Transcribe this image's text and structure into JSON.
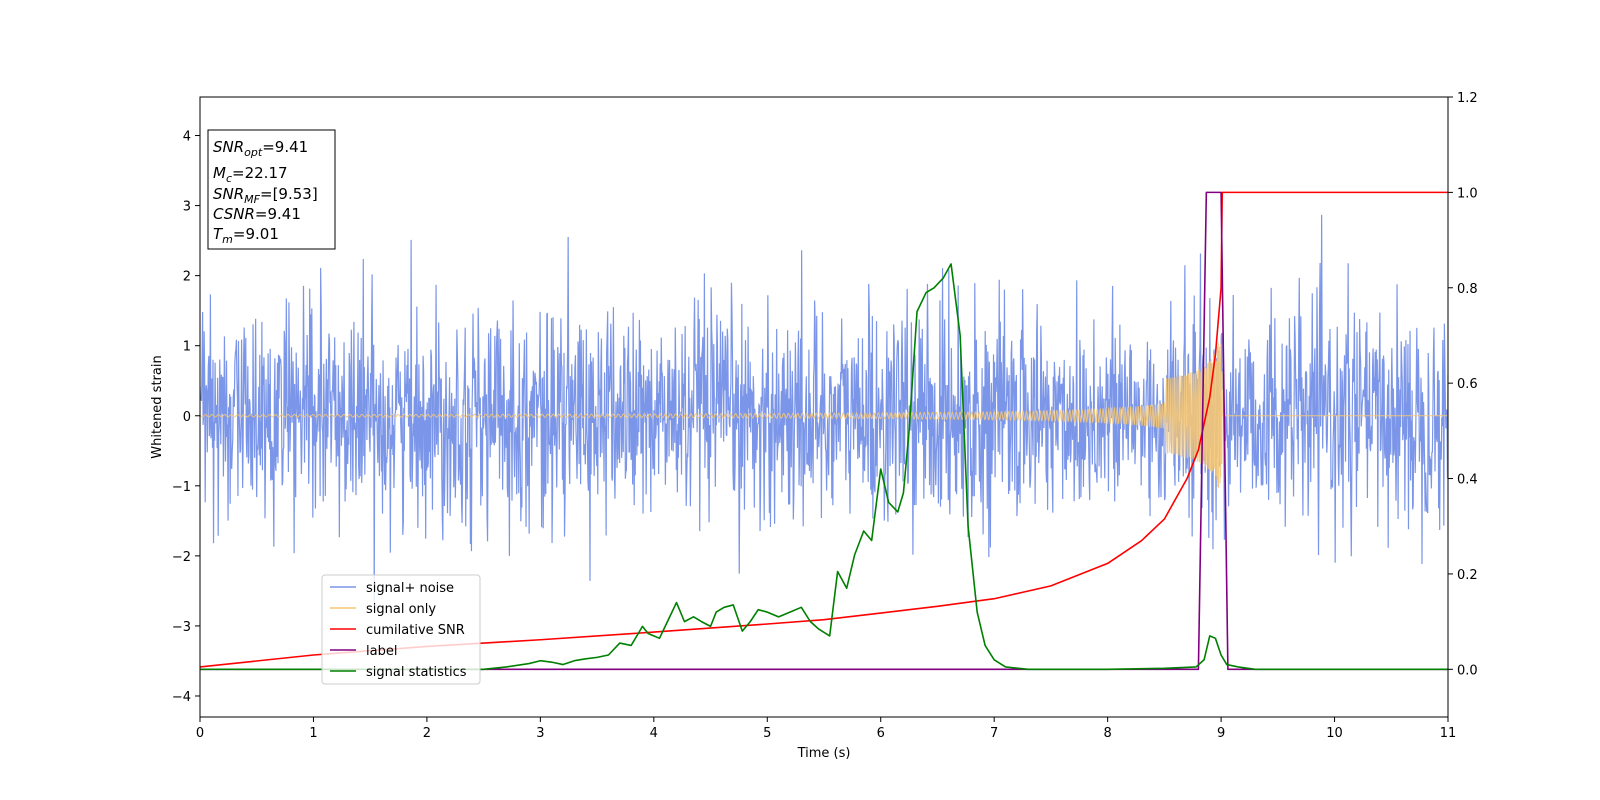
{
  "chart_data": {
    "type": "line",
    "xlabel": "Time (s)",
    "ylabel": "Whitened strain",
    "xlim": [
      0,
      11
    ],
    "ylim": [
      -4.3,
      4.55
    ],
    "y2lim": [
      -0.1,
      1.2
    ],
    "x_ticks": [
      "0",
      "1",
      "2",
      "3",
      "4",
      "5",
      "6",
      "7",
      "8",
      "9",
      "10",
      "11"
    ],
    "y_ticks": [
      "4",
      "3",
      "2",
      "1",
      "0",
      "−1",
      "−2",
      "−3",
      "−4"
    ],
    "y2_ticks": [
      "1.2",
      "1.0",
      "0.8",
      "0.6",
      "0.4",
      "0.2",
      "0.0"
    ],
    "grid": false,
    "legend_position": "lower-left",
    "info_box": {
      "snr_opt": {
        "sym": "SNR",
        "sub": "opt",
        "value": "=9.41"
      },
      "mc": {
        "sym": "M",
        "sub": "c",
        "value": "=22.17"
      },
      "snr_mf": {
        "sym": "SNR",
        "sub": "MF",
        "value": "=[9.53]"
      },
      "csnr": {
        "sym": "CSNR",
        "value": "=9.41"
      },
      "tm": {
        "sym": "T",
        "sub": "m",
        "value": "=9.01"
      }
    },
    "series": [
      {
        "name": "signal+ noise",
        "color": "#7b96e8",
        "axis": "left",
        "style": "noise",
        "amplitude_sigma": 0.75,
        "range_min": -3.85,
        "range_max": 3.3,
        "x_range": [
          0,
          11
        ]
      },
      {
        "name": "signal only",
        "color": "#f5c675",
        "axis": "left",
        "style": "chirp",
        "merger_time": 9.01,
        "peak_amplitude": 1.05,
        "x_range": [
          0,
          11
        ]
      },
      {
        "name": "cumilative SNR",
        "color": "#ff0000",
        "axis": "right",
        "x": [
          0,
          1,
          2,
          3,
          4,
          5,
          5.5,
          6,
          6.5,
          7,
          7.5,
          8,
          8.3,
          8.5,
          8.7,
          8.8,
          8.9,
          8.95,
          9.0,
          9.01,
          11
        ],
        "values": [
          0.005,
          0.03,
          0.048,
          0.062,
          0.078,
          0.095,
          0.104,
          0.118,
          0.132,
          0.148,
          0.175,
          0.222,
          0.27,
          0.315,
          0.4,
          0.46,
          0.57,
          0.66,
          0.8,
          1.0,
          1.0
        ]
      },
      {
        "name": "label",
        "color": "#800080",
        "axis": "right",
        "x": [
          0,
          8.8,
          8.87,
          9.0,
          9.06,
          11
        ],
        "values": [
          0,
          0,
          1.0,
          1.0,
          0,
          0
        ]
      },
      {
        "name": "signal statistics",
        "color": "#008000",
        "axis": "right",
        "x": [
          0,
          2.5,
          2.7,
          2.9,
          3.0,
          3.1,
          3.2,
          3.3,
          3.4,
          3.5,
          3.6,
          3.7,
          3.8,
          3.9,
          3.95,
          4.05,
          4.12,
          4.2,
          4.27,
          4.35,
          4.42,
          4.5,
          4.55,
          4.62,
          4.7,
          4.78,
          4.85,
          4.92,
          5.0,
          5.1,
          5.2,
          5.3,
          5.38,
          5.45,
          5.55,
          5.62,
          5.7,
          5.77,
          5.85,
          5.92,
          6.0,
          6.07,
          6.15,
          6.2,
          6.25,
          6.32,
          6.4,
          6.47,
          6.55,
          6.62,
          6.7,
          6.77,
          6.85,
          6.92,
          7.0,
          7.1,
          7.3,
          8.0,
          8.5,
          8.78,
          8.85,
          8.9,
          8.95,
          9.0,
          9.05,
          9.15,
          9.3,
          11
        ],
        "values": [
          0.0,
          0.0,
          0.005,
          0.012,
          0.018,
          0.015,
          0.01,
          0.018,
          0.022,
          0.025,
          0.03,
          0.055,
          0.05,
          0.09,
          0.075,
          0.065,
          0.1,
          0.14,
          0.1,
          0.11,
          0.1,
          0.09,
          0.12,
          0.13,
          0.135,
          0.08,
          0.1,
          0.125,
          0.12,
          0.11,
          0.12,
          0.13,
          0.1,
          0.085,
          0.07,
          0.205,
          0.17,
          0.24,
          0.29,
          0.27,
          0.42,
          0.35,
          0.33,
          0.37,
          0.5,
          0.75,
          0.79,
          0.8,
          0.82,
          0.85,
          0.7,
          0.3,
          0.12,
          0.05,
          0.02,
          0.005,
          0.0,
          0.0,
          0.002,
          0.005,
          0.02,
          0.07,
          0.065,
          0.03,
          0.01,
          0.005,
          0.0,
          0.0
        ]
      }
    ]
  }
}
